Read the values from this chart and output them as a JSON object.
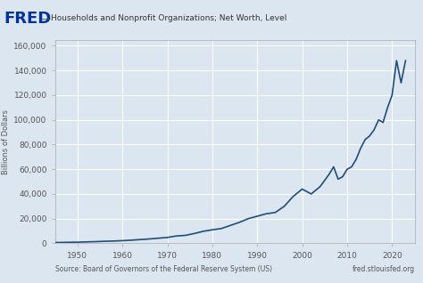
{
  "title": "Households and Nonprofit Organizations; Net Worth, Level",
  "ylabel": "Billions of Dollars",
  "source_text": "Source: Board of Governors of the Federal Reserve System (US)",
  "website_text": "fred.stlouisfed.org",
  "line_color": "#1f4e79",
  "bg_color": "#dce6f0",
  "plot_bg_color": "#dce6f0",
  "header_bg": "#dce6f0",
  "grid_color": "#ffffff",
  "yticks": [
    0,
    20000,
    40000,
    60000,
    80000,
    100000,
    120000,
    140000,
    160000
  ],
  "xticks": [
    1950,
    1960,
    1970,
    1980,
    1990,
    2000,
    2010,
    2020
  ],
  "xlim": [
    1945,
    2025
  ],
  "ylim": [
    0,
    165000
  ],
  "fred_text_color": "#003399",
  "data_x": [
    1945,
    1950,
    1952,
    1954,
    1956,
    1958,
    1960,
    1962,
    1964,
    1966,
    1968,
    1970,
    1972,
    1974,
    1976,
    1978,
    1980,
    1982,
    1984,
    1986,
    1988,
    1990,
    1992,
    1994,
    1996,
    1998,
    2000,
    2002,
    2004,
    2006,
    2007,
    2008,
    2009,
    2010,
    2011,
    2012,
    2013,
    2014,
    2015,
    2016,
    2017,
    2018,
    2019,
    2020,
    2021,
    2022,
    2023
  ],
  "data_y": [
    700,
    1000,
    1200,
    1400,
    1700,
    1900,
    2200,
    2600,
    3100,
    3600,
    4200,
    4800,
    6000,
    6500,
    8000,
    9800,
    11000,
    12000,
    14500,
    17000,
    20000,
    22000,
    24000,
    25000,
    30000,
    38000,
    44000,
    40000,
    46000,
    56000,
    62000,
    52000,
    54000,
    60000,
    62000,
    68000,
    77000,
    84000,
    87000,
    92000,
    100000,
    98000,
    110000,
    120000,
    148000,
    130000,
    148000
  ]
}
